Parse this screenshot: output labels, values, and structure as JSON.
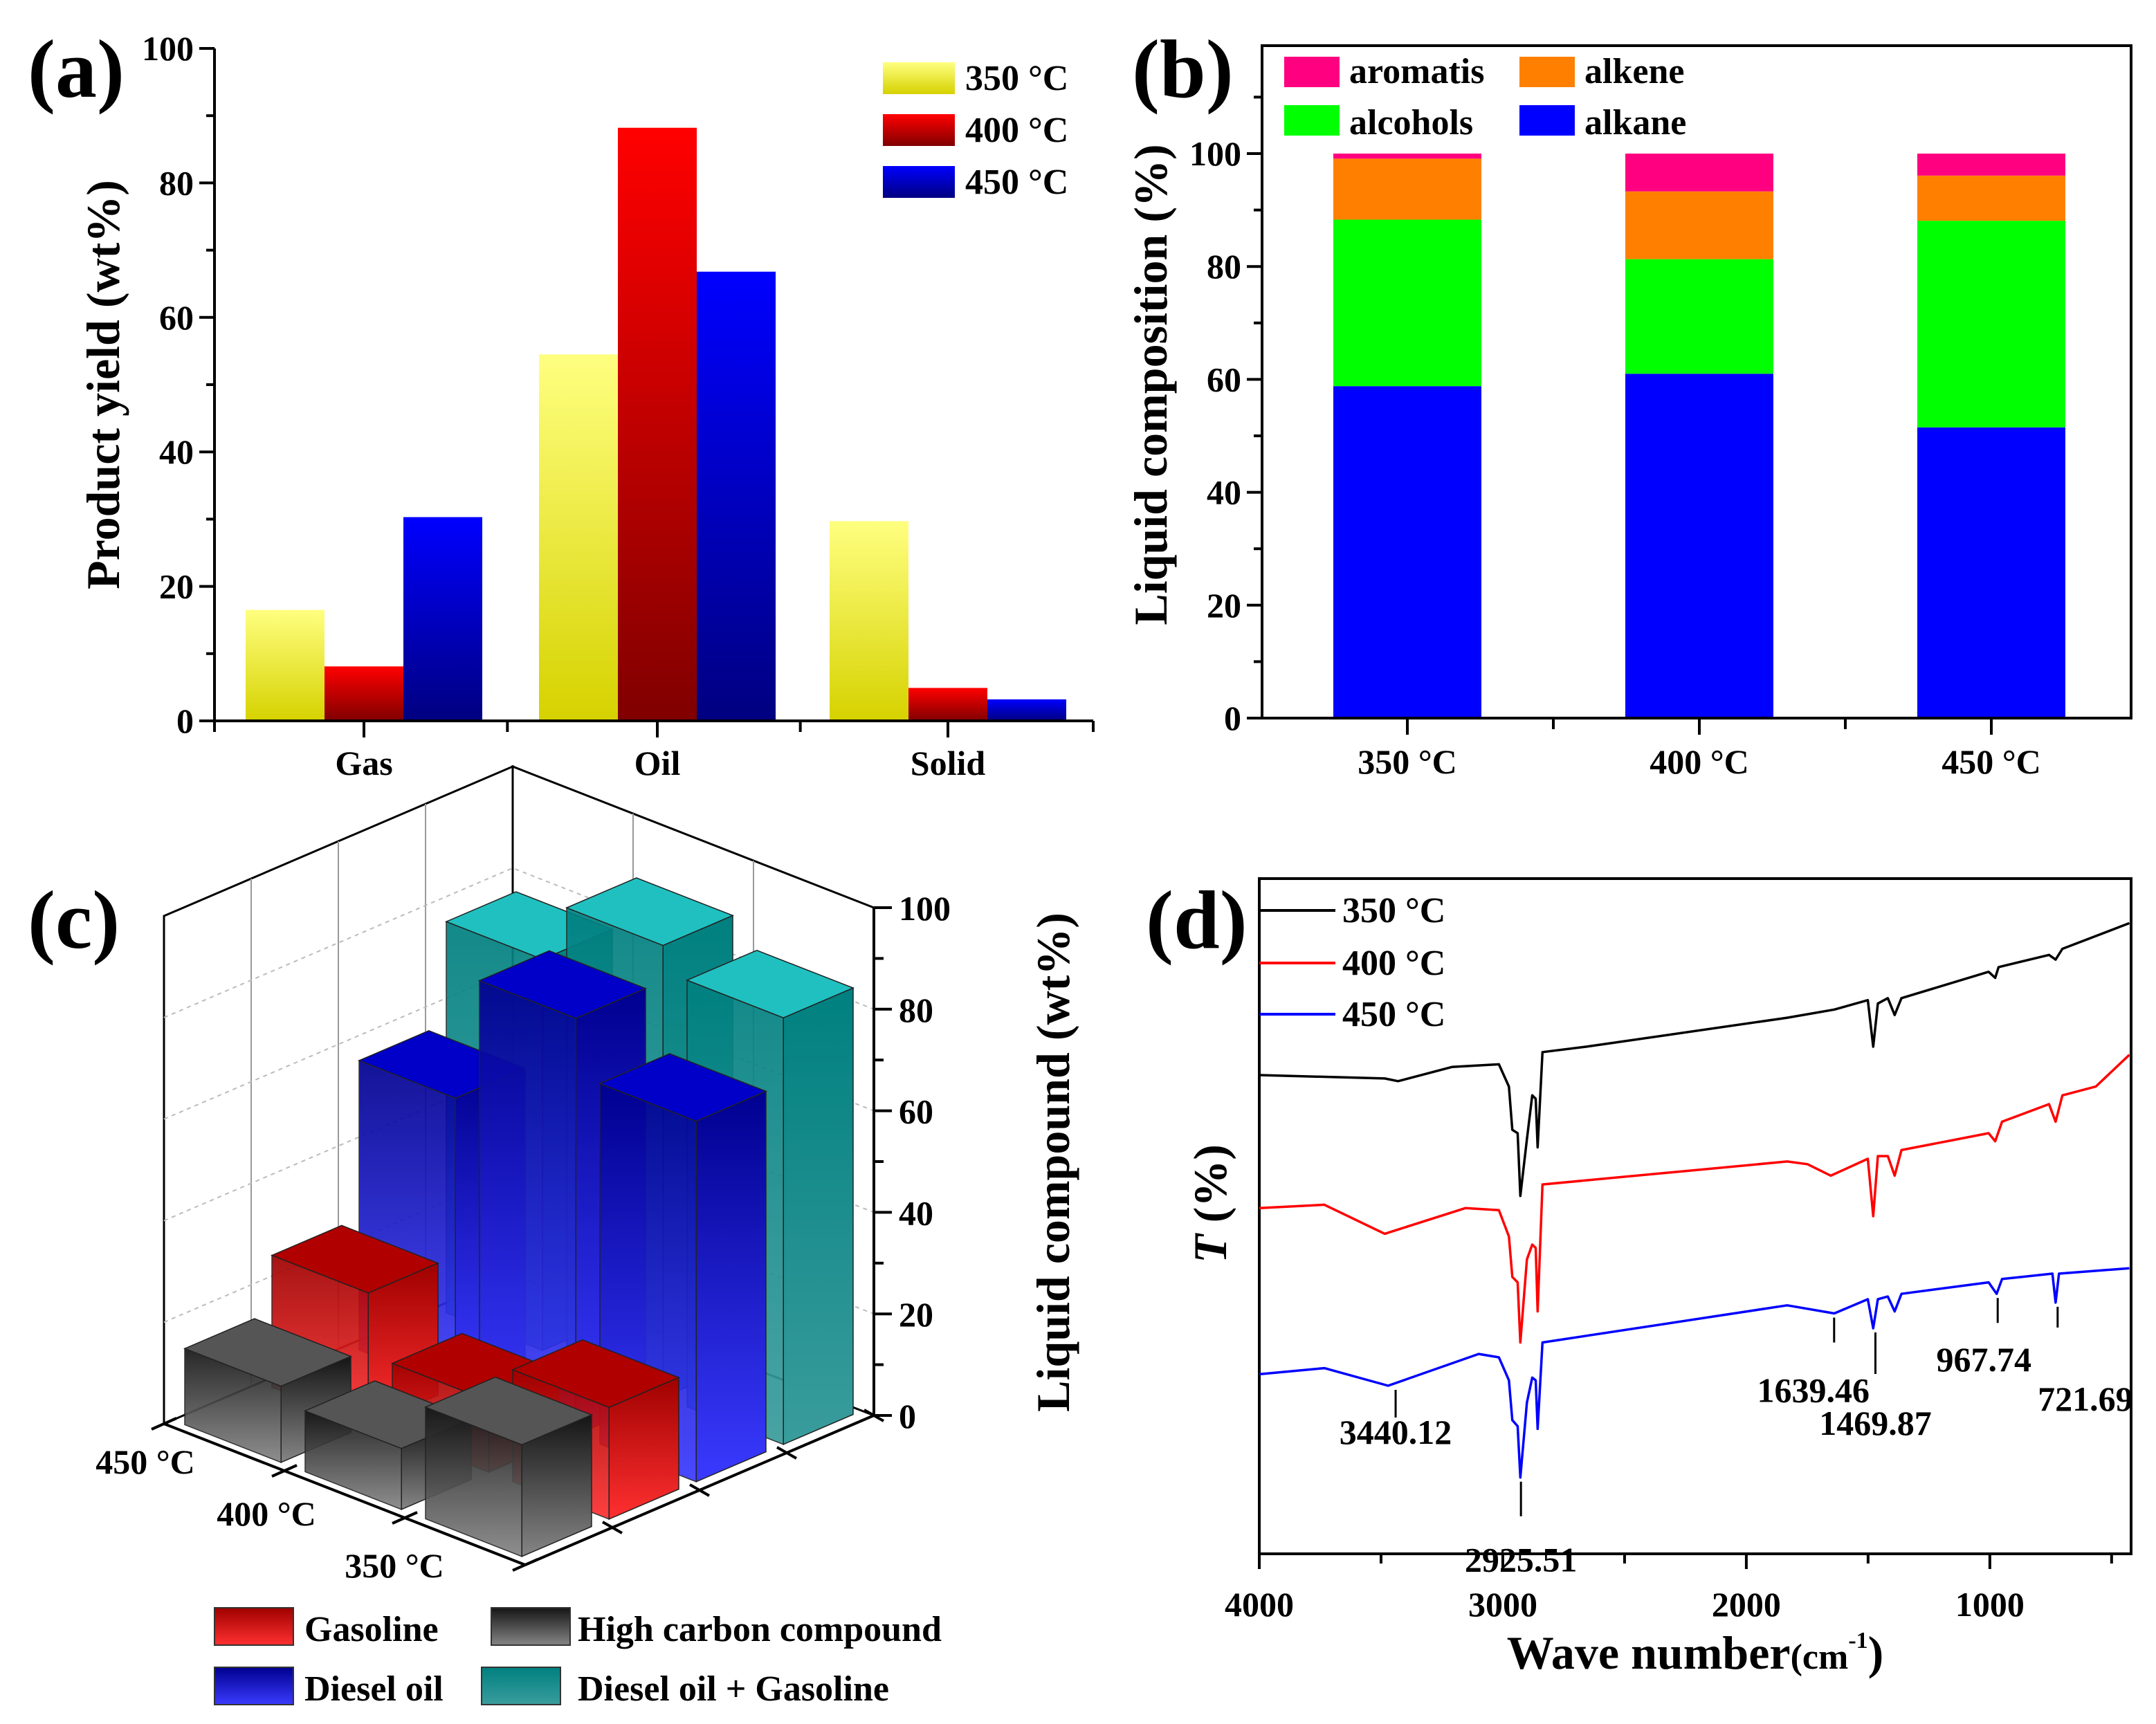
{
  "panel_labels": [
    "(a)",
    "(b)",
    "(c)",
    "(d)"
  ],
  "chart_data": [
    {
      "panel": "(a)",
      "type": "bar",
      "categories": [
        "Gas",
        "Oil",
        "Solid"
      ],
      "series": [
        {
          "name": "350 °C",
          "values": [
            16.5,
            54.5,
            29.7
          ],
          "color": "#f0f040"
        },
        {
          "name": "400 °C",
          "values": [
            8.1,
            88.2,
            4.9
          ],
          "color": "#e00000"
        },
        {
          "name": "450 °C",
          "values": [
            30.3,
            66.8,
            3.2
          ],
          "color": "#0000e0"
        }
      ],
      "xlabel": "",
      "ylabel": "Product yield (wt%)",
      "ylim": [
        0,
        100
      ],
      "yticks": [
        0,
        20,
        40,
        60,
        80,
        100
      ],
      "legend": "top-right"
    },
    {
      "panel": "(b)",
      "type": "bar",
      "stacked": true,
      "categories": [
        "350 °C",
        "400 °C",
        "450 °C"
      ],
      "series": [
        {
          "name": "alkane",
          "values": [
            58.8,
            61.0,
            51.5
          ],
          "color": "#0000ff"
        },
        {
          "name": "alcohols",
          "values": [
            29.5,
            20.3,
            36.6
          ],
          "color": "#00ff00"
        },
        {
          "name": "alkene",
          "values": [
            10.8,
            12.0,
            8.0
          ],
          "color": "#ff8000"
        },
        {
          "name": "aromatis",
          "values": [
            0.9,
            6.7,
            3.9
          ],
          "color": "#ff0080"
        }
      ],
      "legend_order": [
        "aromatis",
        "alkene",
        "alcohols",
        "alkane"
      ],
      "ylabel": "Liquid composition (%)",
      "ylim": [
        0,
        119
      ],
      "yticks": [
        0,
        20,
        40,
        60,
        80,
        100
      ],
      "legend": "top-left"
    },
    {
      "panel": "(c)",
      "type": "bar3d",
      "categories": [
        "450 °C",
        "400 °C",
        "350 °C"
      ],
      "series": [
        {
          "name": "High carbon compound",
          "values": [
            15,
            12,
            22
          ],
          "color": "#606060"
        },
        {
          "name": "Gasoline",
          "values": [
            26,
            14,
            22
          ],
          "color": "#e00000"
        },
        {
          "name": "Diesel oil",
          "values": [
            57,
            82,
            71
          ],
          "color": "#0000c0"
        },
        {
          "name": "Diesel oil + Gasoline",
          "values": [
            77,
            89,
            84
          ],
          "color": "#20a0a0"
        }
      ],
      "legend_order": [
        "Gasoline",
        "High carbon compound",
        "Diesel oil",
        "Diesel oil + Gasoline"
      ],
      "zlabel": "Liquid compound (wt%)",
      "zlim": [
        0,
        100
      ],
      "zticks": [
        0,
        20,
        40,
        60,
        80,
        100
      ],
      "legend": "bottom"
    },
    {
      "panel": "(d)",
      "type": "line",
      "xlabel_main": "Wave number",
      "xlabel_unit": "(cm",
      "xlabel_sup": "-1",
      "xlabel_close": ")",
      "ylabel_symbol": "T",
      "ylabel_unit": " (%)",
      "xlim": [
        4000,
        420
      ],
      "ylim": [
        0,
        100
      ],
      "xticks": [
        4000,
        3000,
        2000,
        1000
      ],
      "legend": "top-left",
      "series": [
        {
          "name": "350 °C",
          "color": "#000000",
          "x": [
            4000,
            3485,
            3430,
            3209,
            3016,
            2975,
            2961,
            2939,
            2928,
            2901,
            2879,
            2865,
            2857,
            2837,
            2658,
            1832,
            1639,
            1501,
            1479,
            1460,
            1419,
            1391,
            1363,
            1005,
            978,
            964,
            757,
            730,
            702,
            427
          ],
          "y": [
            70.9,
            70.4,
            70.0,
            72.1,
            72.5,
            69.2,
            62.8,
            62.3,
            53.0,
            61.4,
            67.9,
            67.4,
            60.2,
            74.3,
            75.1,
            79.4,
            80.6,
            82.0,
            75.1,
            81.5,
            82.3,
            79.8,
            82.3,
            86.2,
            85.3,
            86.9,
            88.7,
            88.0,
            89.6,
            93.4
          ]
        },
        {
          "name": "400 °C",
          "color": "#ff0000",
          "x": [
            4000,
            3733,
            3485,
            3154,
            3016,
            2975,
            2961,
            2939,
            2928,
            2901,
            2879,
            2865,
            2857,
            2837,
            1832,
            1749,
            1653,
            1501,
            1479,
            1460,
            1419,
            1391,
            1363,
            1005,
            978,
            950,
            757,
            730,
            702,
            565,
            427
          ],
          "y": [
            51.2,
            51.7,
            47.4,
            51.2,
            50.9,
            47.0,
            41.0,
            40.2,
            31.3,
            43.6,
            45.8,
            45.3,
            35.9,
            54.7,
            58.1,
            57.7,
            56.0,
            58.5,
            50.0,
            58.9,
            58.9,
            56.0,
            59.8,
            62.3,
            61.1,
            64.0,
            66.6,
            64.0,
            67.9,
            69.2,
            73.9
          ]
        },
        {
          "name": "450 °C",
          "color": "#0000ff",
          "x": [
            4000,
            3733,
            3471,
            3099,
            3016,
            2975,
            2961,
            2939,
            2928,
            2901,
            2879,
            2865,
            2857,
            2837,
            1832,
            1639,
            1501,
            1479,
            1460,
            1419,
            1391,
            1363,
            1005,
            972,
            950,
            743,
            730,
            716,
            427
          ],
          "y": [
            26.6,
            27.5,
            24.9,
            29.6,
            29.1,
            25.7,
            19.8,
            18.9,
            11.3,
            22.4,
            26.1,
            25.7,
            18.5,
            31.3,
            36.8,
            35.6,
            37.7,
            33.4,
            37.7,
            38.1,
            35.9,
            38.5,
            40.2,
            38.5,
            40.7,
            41.5,
            37.2,
            41.5,
            42.3
          ]
        }
      ],
      "annotations": [
        {
          "label": "3440.12",
          "x": 3440.12,
          "y": 24.9
        },
        {
          "label": "2925.51",
          "x": 2925.51,
          "y": 11.3
        },
        {
          "label": "1639.46",
          "x": 1639.46,
          "y": 35.6
        },
        {
          "label": "1469.87",
          "x": 1469.87,
          "y": 33.4
        },
        {
          "label": "967.74",
          "x": 967.74,
          "y": 38.5
        },
        {
          "label": "721.69",
          "x": 721.69,
          "y": 37.2
        }
      ]
    }
  ]
}
